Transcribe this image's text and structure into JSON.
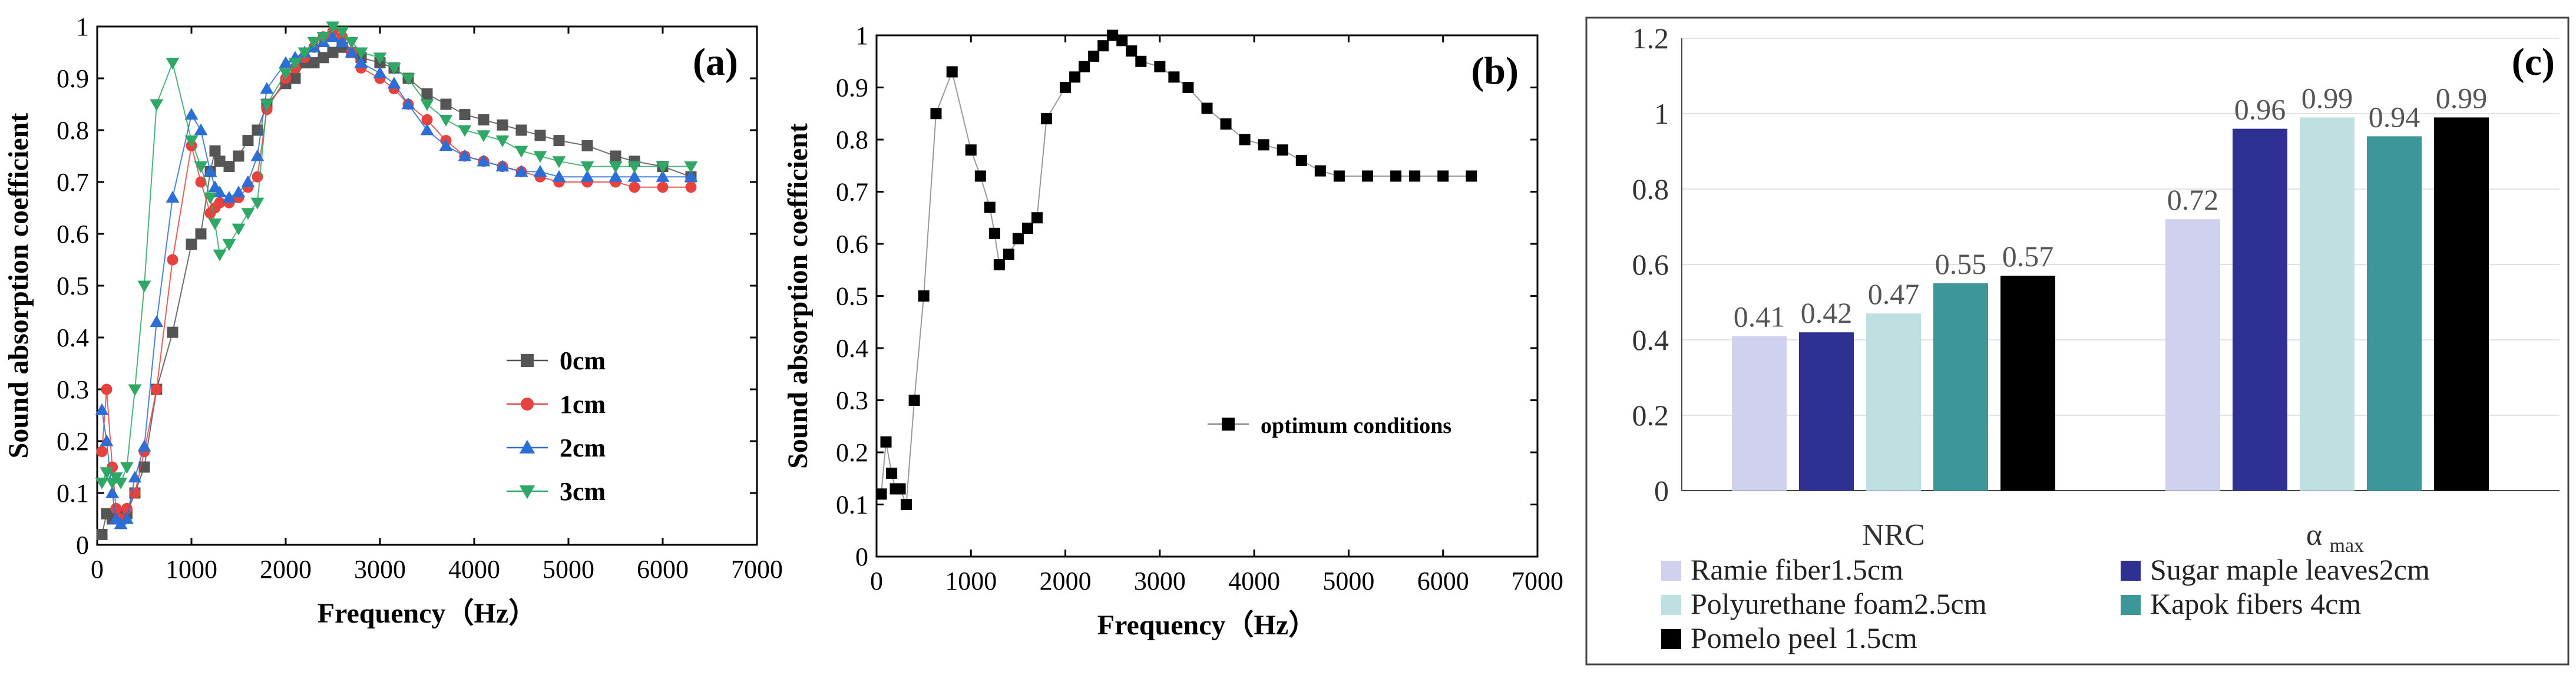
{
  "chart_data": [
    {
      "panel": "a",
      "type": "line",
      "panel_label": "(a)",
      "xlabel": "Frequency（Hz）",
      "ylabel": "Sound absorption coefficient",
      "xlim": [
        0,
        7000
      ],
      "ylim": [
        0,
        1
      ],
      "xticks": [
        0,
        1000,
        2000,
        3000,
        4000,
        5000,
        6000,
        7000
      ],
      "yticks": [
        0,
        0.1,
        0.2,
        0.3,
        0.4,
        0.5,
        0.6,
        0.7,
        0.8,
        0.9,
        1
      ],
      "ytick_labels": [
        "0",
        "0.1",
        "0.2",
        "0.3",
        "0.4",
        "0.5",
        "0.6",
        "0.7",
        "0.8",
        "0.9",
        "1"
      ],
      "legend": "bottom-right",
      "series": [
        {
          "name": "0cm",
          "color": "#555555",
          "marker": "square",
          "x": [
            50,
            100,
            160,
            200,
            250,
            315,
            400,
            500,
            630,
            800,
            1000,
            1100,
            1200,
            1250,
            1300,
            1400,
            1500,
            1600,
            1700,
            1800,
            2000,
            2100,
            2200,
            2300,
            2400,
            2500,
            2600,
            2700,
            2800,
            3000,
            3150,
            3300,
            3500,
            3700,
            3900,
            4100,
            4300,
            4500,
            4700,
            4900,
            5200,
            5500,
            5700,
            6000,
            6300
          ],
          "y": [
            0.02,
            0.06,
            0.05,
            0.06,
            0.05,
            0.06,
            0.1,
            0.15,
            0.3,
            0.41,
            0.58,
            0.6,
            0.72,
            0.76,
            0.74,
            0.73,
            0.75,
            0.78,
            0.8,
            0.85,
            0.89,
            0.9,
            0.93,
            0.93,
            0.94,
            0.95,
            0.96,
            0.95,
            0.94,
            0.93,
            0.92,
            0.9,
            0.87,
            0.85,
            0.83,
            0.82,
            0.81,
            0.8,
            0.79,
            0.78,
            0.77,
            0.75,
            0.74,
            0.73,
            0.71
          ]
        },
        {
          "name": "1cm",
          "color": "#e8423f",
          "marker": "circle",
          "x": [
            50,
            100,
            160,
            200,
            250,
            315,
            400,
            500,
            630,
            800,
            1000,
            1100,
            1200,
            1250,
            1300,
            1400,
            1500,
            1600,
            1700,
            1800,
            2000,
            2100,
            2200,
            2300,
            2400,
            2500,
            2600,
            2700,
            2800,
            3000,
            3150,
            3300,
            3500,
            3700,
            3900,
            4100,
            4300,
            4500,
            4700,
            4900,
            5200,
            5500,
            5700,
            6000,
            6300
          ],
          "y": [
            0.18,
            0.3,
            0.15,
            0.07,
            0.05,
            0.07,
            0.1,
            0.18,
            0.3,
            0.55,
            0.77,
            0.7,
            0.64,
            0.65,
            0.66,
            0.66,
            0.67,
            0.69,
            0.71,
            0.84,
            0.9,
            0.92,
            0.94,
            0.96,
            0.98,
            0.99,
            0.98,
            0.95,
            0.92,
            0.9,
            0.88,
            0.85,
            0.82,
            0.78,
            0.75,
            0.74,
            0.73,
            0.72,
            0.71,
            0.7,
            0.7,
            0.7,
            0.69,
            0.69,
            0.69
          ]
        },
        {
          "name": "2cm",
          "color": "#2b6fd6",
          "marker": "triangle-up",
          "x": [
            50,
            100,
            160,
            200,
            250,
            315,
            400,
            500,
            630,
            800,
            1000,
            1100,
            1200,
            1250,
            1300,
            1400,
            1500,
            1600,
            1700,
            1800,
            2000,
            2100,
            2200,
            2300,
            2400,
            2500,
            2600,
            2700,
            2800,
            3000,
            3150,
            3300,
            3500,
            3700,
            3900,
            4100,
            4300,
            4500,
            4700,
            4900,
            5200,
            5500,
            5700,
            6000,
            6300
          ],
          "y": [
            0.26,
            0.2,
            0.1,
            0.05,
            0.04,
            0.05,
            0.13,
            0.19,
            0.43,
            0.67,
            0.83,
            0.8,
            0.72,
            0.69,
            0.68,
            0.67,
            0.68,
            0.7,
            0.75,
            0.88,
            0.93,
            0.94,
            0.95,
            0.96,
            0.97,
            0.98,
            0.97,
            0.95,
            0.93,
            0.91,
            0.89,
            0.85,
            0.8,
            0.77,
            0.75,
            0.74,
            0.73,
            0.72,
            0.72,
            0.71,
            0.71,
            0.71,
            0.71,
            0.71,
            0.71
          ]
        },
        {
          "name": "3cm",
          "color": "#2fa866",
          "marker": "triangle-down",
          "x": [
            50,
            100,
            160,
            200,
            250,
            315,
            400,
            500,
            630,
            800,
            1000,
            1100,
            1200,
            1250,
            1300,
            1400,
            1500,
            1600,
            1700,
            1800,
            2000,
            2100,
            2200,
            2300,
            2400,
            2500,
            2600,
            2700,
            2800,
            3000,
            3150,
            3300,
            3500,
            3700,
            3900,
            4100,
            4300,
            4500,
            4700,
            4900,
            5200,
            5500,
            5700,
            6000,
            6300
          ],
          "y": [
            0.12,
            0.14,
            0.12,
            0.13,
            0.12,
            0.15,
            0.3,
            0.5,
            0.85,
            0.93,
            0.78,
            0.73,
            0.67,
            0.62,
            0.56,
            0.58,
            0.61,
            0.64,
            0.66,
            0.85,
            0.91,
            0.93,
            0.95,
            0.97,
            0.98,
            1.0,
            0.99,
            0.97,
            0.95,
            0.94,
            0.92,
            0.9,
            0.85,
            0.82,
            0.8,
            0.79,
            0.78,
            0.76,
            0.75,
            0.74,
            0.73,
            0.73,
            0.73,
            0.73,
            0.73
          ]
        }
      ]
    },
    {
      "panel": "b",
      "type": "line",
      "panel_label": "(b)",
      "xlabel": "Frequency（Hz）",
      "ylabel": "Sound absorption coefficient",
      "xlim": [
        0,
        7000
      ],
      "ylim": [
        0,
        1
      ],
      "xticks": [
        0,
        1000,
        2000,
        3000,
        4000,
        5000,
        6000,
        7000
      ],
      "yticks": [
        0,
        0.1,
        0.2,
        0.3,
        0.4,
        0.5,
        0.6,
        0.7,
        0.8,
        0.9,
        1
      ],
      "ytick_labels": [
        "0",
        "0.1",
        "0.2",
        "0.3",
        "0.4",
        "0.5",
        "0.6",
        "0.7",
        "0.8",
        "0.9",
        "1"
      ],
      "legend": "right",
      "series": [
        {
          "name": "optimum conditions",
          "color": "#000000",
          "marker": "square",
          "x": [
            50,
            100,
            160,
            200,
            250,
            315,
            400,
            500,
            630,
            800,
            1000,
            1100,
            1200,
            1250,
            1300,
            1400,
            1500,
            1600,
            1700,
            1800,
            2000,
            2100,
            2200,
            2300,
            2400,
            2500,
            2600,
            2700,
            2800,
            3000,
            3150,
            3300,
            3500,
            3700,
            3900,
            4100,
            4300,
            4500,
            4700,
            4900,
            5200,
            5500,
            5700,
            6000,
            6300
          ],
          "y": [
            0.12,
            0.22,
            0.16,
            0.13,
            0.13,
            0.1,
            0.3,
            0.5,
            0.85,
            0.93,
            0.78,
            0.73,
            0.67,
            0.62,
            0.56,
            0.58,
            0.61,
            0.63,
            0.65,
            0.84,
            0.9,
            0.92,
            0.94,
            0.96,
            0.98,
            1.0,
            0.99,
            0.97,
            0.95,
            0.94,
            0.92,
            0.9,
            0.86,
            0.83,
            0.8,
            0.79,
            0.78,
            0.76,
            0.74,
            0.73,
            0.73,
            0.73,
            0.73,
            0.73,
            0.73
          ]
        }
      ]
    },
    {
      "panel": "c",
      "type": "bar",
      "panel_label": "(c)",
      "categories": [
        "NRC",
        "α"
      ],
      "category_subscripts": [
        "",
        "max"
      ],
      "ylim": [
        0,
        1.2
      ],
      "yticks": [
        0,
        0.2,
        0.4,
        0.6,
        0.8,
        1.0,
        1.2
      ],
      "ytick_labels": [
        "0",
        "0.2",
        "0.4",
        "0.6",
        "0.8",
        "1",
        "1.2"
      ],
      "grid": true,
      "legend": "bottom",
      "series": [
        {
          "name": "Ramie fiber1.5cm",
          "color": "#cfd1ee",
          "values": [
            0.41,
            0.72
          ],
          "labels": [
            "0.41",
            "0.72"
          ]
        },
        {
          "name": "Sugar maple  leaves2cm",
          "color": "#2e3192",
          "values": [
            0.42,
            0.96
          ],
          "labels": [
            "0.42",
            "0.96"
          ]
        },
        {
          "name": "Polyurethane foam2.5cm",
          "color": "#bfe0e1",
          "values": [
            0.47,
            0.99
          ],
          "labels": [
            "0.47",
            "0.99"
          ]
        },
        {
          "name": "Kapok fibers 4cm",
          "color": "#3d9698",
          "values": [
            0.55,
            0.94
          ],
          "labels": [
            "0.55",
            "0.94"
          ]
        },
        {
          "name": "Pomelo peel 1.5cm",
          "color": "#000000",
          "values": [
            0.57,
            0.99
          ],
          "labels": [
            "0.57",
            "0.99"
          ]
        }
      ]
    }
  ]
}
